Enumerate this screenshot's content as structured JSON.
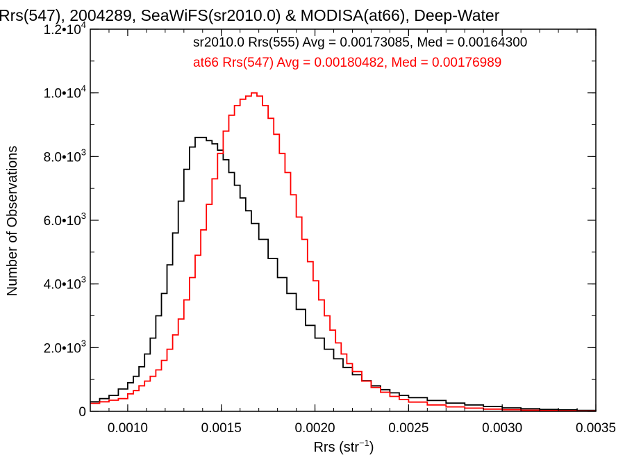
{
  "chart_data": {
    "type": "line",
    "title": "Rrs(547), 2004289, SeaWiFS(sr2010.0) & MODISA(at66), Deep-Water",
    "xlabel": {
      "base": "Rrs (str",
      "sup": "−1",
      "tail": ")"
    },
    "ylabel": "Number of Observations",
    "xlim": [
      0.0008,
      0.0035
    ],
    "ylim": [
      0,
      12000
    ],
    "grid": false,
    "step": true,
    "xticks": [
      {
        "value": 0.001,
        "label": "0.0010"
      },
      {
        "value": 0.0015,
        "label": "0.0015"
      },
      {
        "value": 0.002,
        "label": "0.0020"
      },
      {
        "value": 0.0025,
        "label": "0.0025"
      },
      {
        "value": 0.003,
        "label": "0.0030"
      },
      {
        "value": 0.0035,
        "label": "0.0035"
      }
    ],
    "yticks": [
      {
        "value": 0,
        "label": "0",
        "exp": ""
      },
      {
        "value": 2000,
        "label": "2.0•10",
        "exp": "3"
      },
      {
        "value": 4000,
        "label": "4.0•10",
        "exp": "3"
      },
      {
        "value": 6000,
        "label": "6.0•10",
        "exp": "3"
      },
      {
        "value": 8000,
        "label": "8.0•10",
        "exp": "3"
      },
      {
        "value": 10000,
        "label": "1.0•10",
        "exp": "4"
      },
      {
        "value": 12000,
        "label": "1.2•10",
        "exp": "4"
      }
    ],
    "annotations": [
      {
        "text": "sr2010.0 Rrs(555) Avg = 0.00173085, Med = 0.00164300",
        "color": "#000000"
      },
      {
        "text": "at66 Rrs(547) Avg = 0.00180482, Med = 0.00176989",
        "color": "#ff0000"
      }
    ],
    "series": [
      {
        "color": "#000000",
        "x": [
          0.0008,
          0.00085,
          0.0009,
          0.00095,
          0.001,
          0.00103,
          0.00106,
          0.00109,
          0.00112,
          0.00115,
          0.00118,
          0.00121,
          0.00124,
          0.00127,
          0.0013,
          0.00133,
          0.00136,
          0.00139,
          0.00142,
          0.00145,
          0.00148,
          0.00151,
          0.00154,
          0.00157,
          0.0016,
          0.00163,
          0.00166,
          0.0017,
          0.00175,
          0.0018,
          0.00185,
          0.0019,
          0.00195,
          0.002,
          0.00205,
          0.0021,
          0.00215,
          0.0022,
          0.00225,
          0.0023,
          0.00235,
          0.0024,
          0.00245,
          0.0025,
          0.0026,
          0.0027,
          0.0028,
          0.0029,
          0.003,
          0.0031,
          0.0032,
          0.0033,
          0.0034,
          0.0035
        ],
        "values": [
          300,
          400,
          500,
          700,
          900,
          1100,
          1400,
          1800,
          2300,
          3000,
          3700,
          4600,
          5600,
          6600,
          7600,
          8300,
          8600,
          8600,
          8500,
          8400,
          8200,
          7900,
          7500,
          7100,
          6700,
          6300,
          5900,
          5400,
          4800,
          4200,
          3700,
          3200,
          2700,
          2300,
          1950,
          1650,
          1380,
          1150,
          960,
          800,
          680,
          580,
          500,
          430,
          340,
          260,
          200,
          150,
          110,
          80,
          60,
          45,
          30,
          20
        ]
      },
      {
        "color": "#ff0000",
        "x": [
          0.0008,
          0.00085,
          0.0009,
          0.00095,
          0.001,
          0.00103,
          0.00106,
          0.00109,
          0.00112,
          0.00115,
          0.00118,
          0.00121,
          0.00124,
          0.00127,
          0.0013,
          0.00133,
          0.00136,
          0.00139,
          0.00142,
          0.00145,
          0.00148,
          0.00151,
          0.00154,
          0.00157,
          0.0016,
          0.00163,
          0.00166,
          0.00169,
          0.00172,
          0.00175,
          0.00178,
          0.00181,
          0.00184,
          0.00187,
          0.0019,
          0.00193,
          0.00196,
          0.00199,
          0.00202,
          0.00205,
          0.00208,
          0.00211,
          0.00214,
          0.00217,
          0.0022,
          0.00225,
          0.0023,
          0.00235,
          0.0024,
          0.00245,
          0.0025,
          0.0026,
          0.0027,
          0.0028,
          0.0029,
          0.003,
          0.0031,
          0.0032,
          0.0033,
          0.0034,
          0.0035
        ],
        "values": [
          250,
          300,
          350,
          400,
          550,
          650,
          800,
          950,
          1100,
          1300,
          1600,
          1950,
          2400,
          2900,
          3500,
          4200,
          4900,
          5700,
          6500,
          7300,
          8100,
          8800,
          9300,
          9600,
          9800,
          9900,
          10000,
          9900,
          9600,
          9200,
          8700,
          8100,
          7500,
          6800,
          6100,
          5400,
          4700,
          4100,
          3500,
          3000,
          2550,
          2150,
          1800,
          1500,
          1250,
          950,
          750,
          600,
          470,
          370,
          290,
          200,
          140,
          100,
          70,
          50,
          35,
          25,
          18,
          12,
          8
        ]
      }
    ]
  }
}
